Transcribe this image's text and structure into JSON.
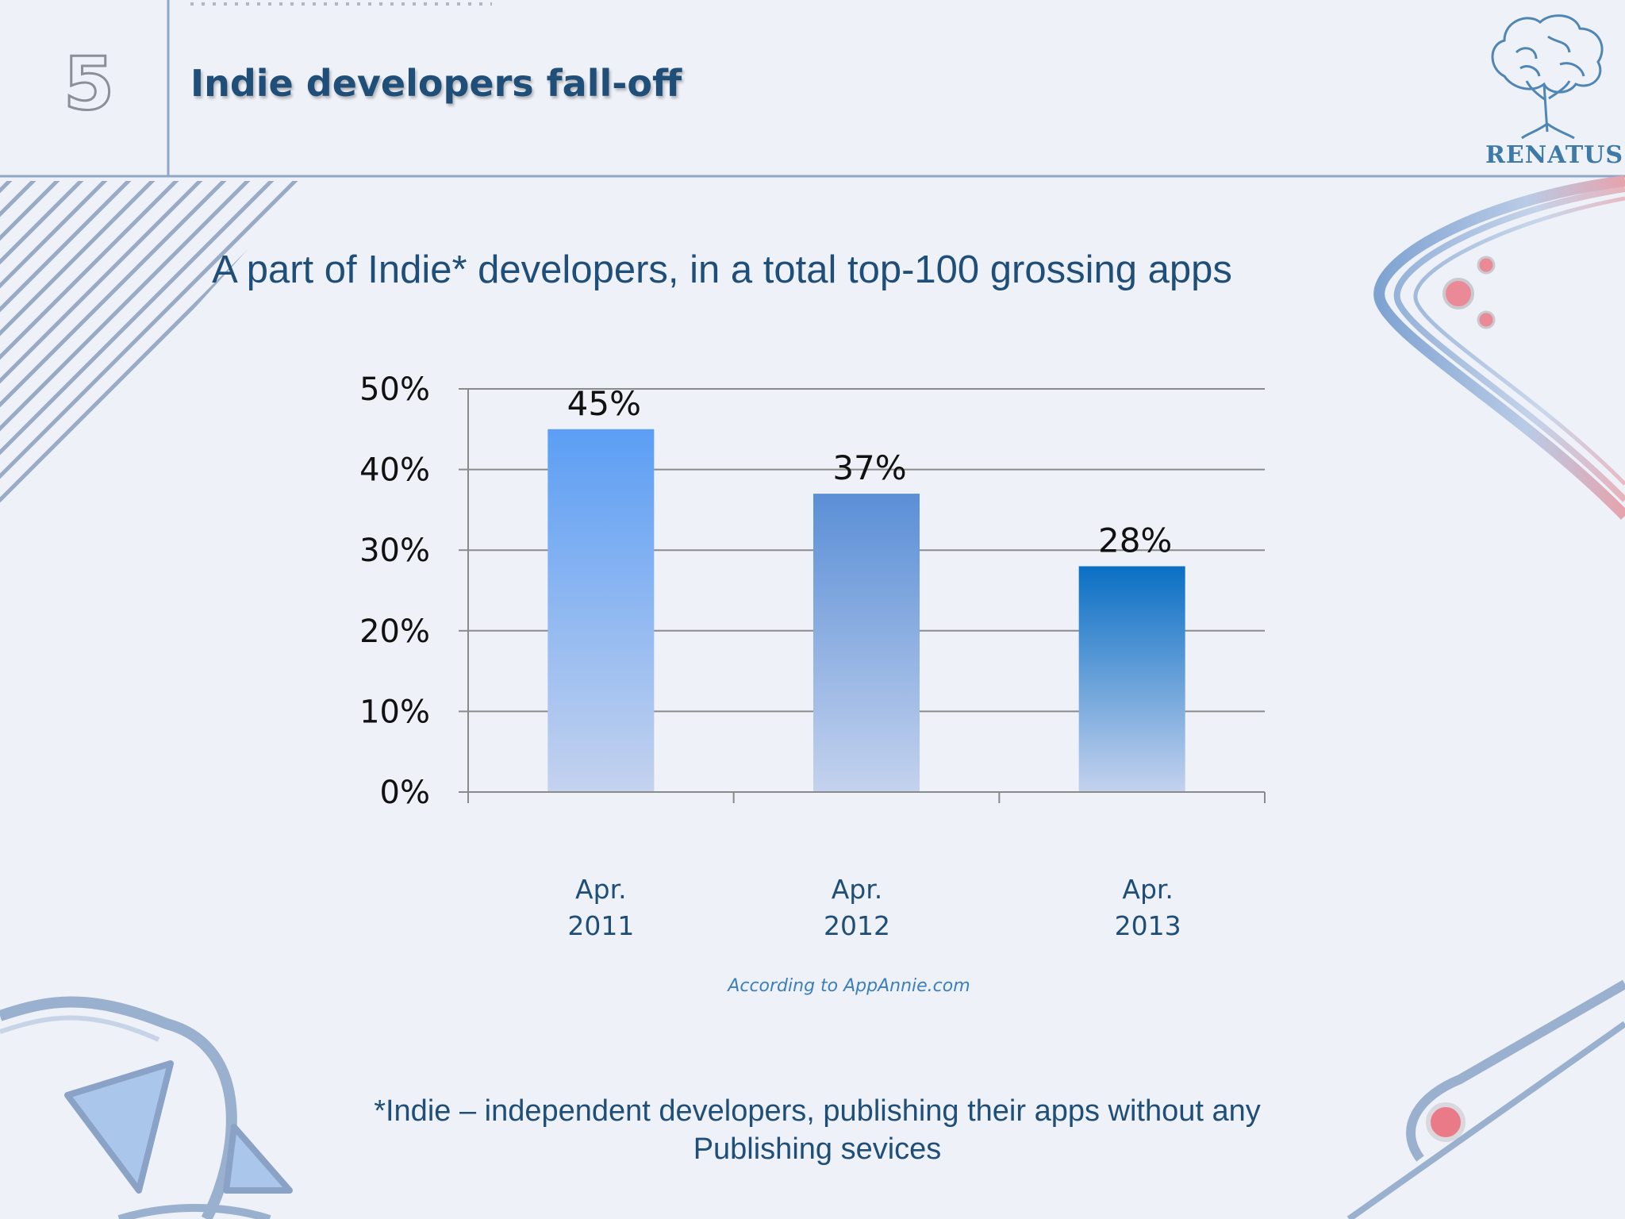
{
  "slide": {
    "number": "5",
    "title": "Indie developers fall-off"
  },
  "chart_data": {
    "type": "bar",
    "title": "A part of Indie* developers, in a total top-100 grossing apps",
    "categories": [
      [
        "Apr.",
        "2011"
      ],
      [
        "Apr.",
        "2012"
      ],
      [
        "Apr.",
        "2013"
      ]
    ],
    "values": [
      45,
      37,
      28
    ],
    "data_labels": [
      "45%",
      "37%",
      "28%"
    ],
    "y_ticks": [
      "0%",
      "10%",
      "20%",
      "30%",
      "40%",
      "50%"
    ],
    "ylim": [
      0,
      50
    ],
    "grid": true,
    "legend": "none",
    "bar_colors": [
      {
        "top": "#5b9ef4",
        "bottom": "#c4d2ee"
      },
      {
        "top": "#5a8fd6",
        "bottom": "#c4d2ee"
      },
      {
        "top": "#0a6fc4",
        "bottom": "#c4d2ee"
      }
    ]
  },
  "source_note": "According to  AppAnnie.com",
  "footnote": {
    "line1": "*Indie – independent developers, publishing their apps without any",
    "line2": "Publishing sevices"
  },
  "logo": {
    "text": "RENATUS",
    "icon": "brain-tree-icon"
  },
  "colors": {
    "title": "#1f4e79",
    "accent_pink": "#e8707f",
    "accent_blue": "#6d94c8"
  }
}
